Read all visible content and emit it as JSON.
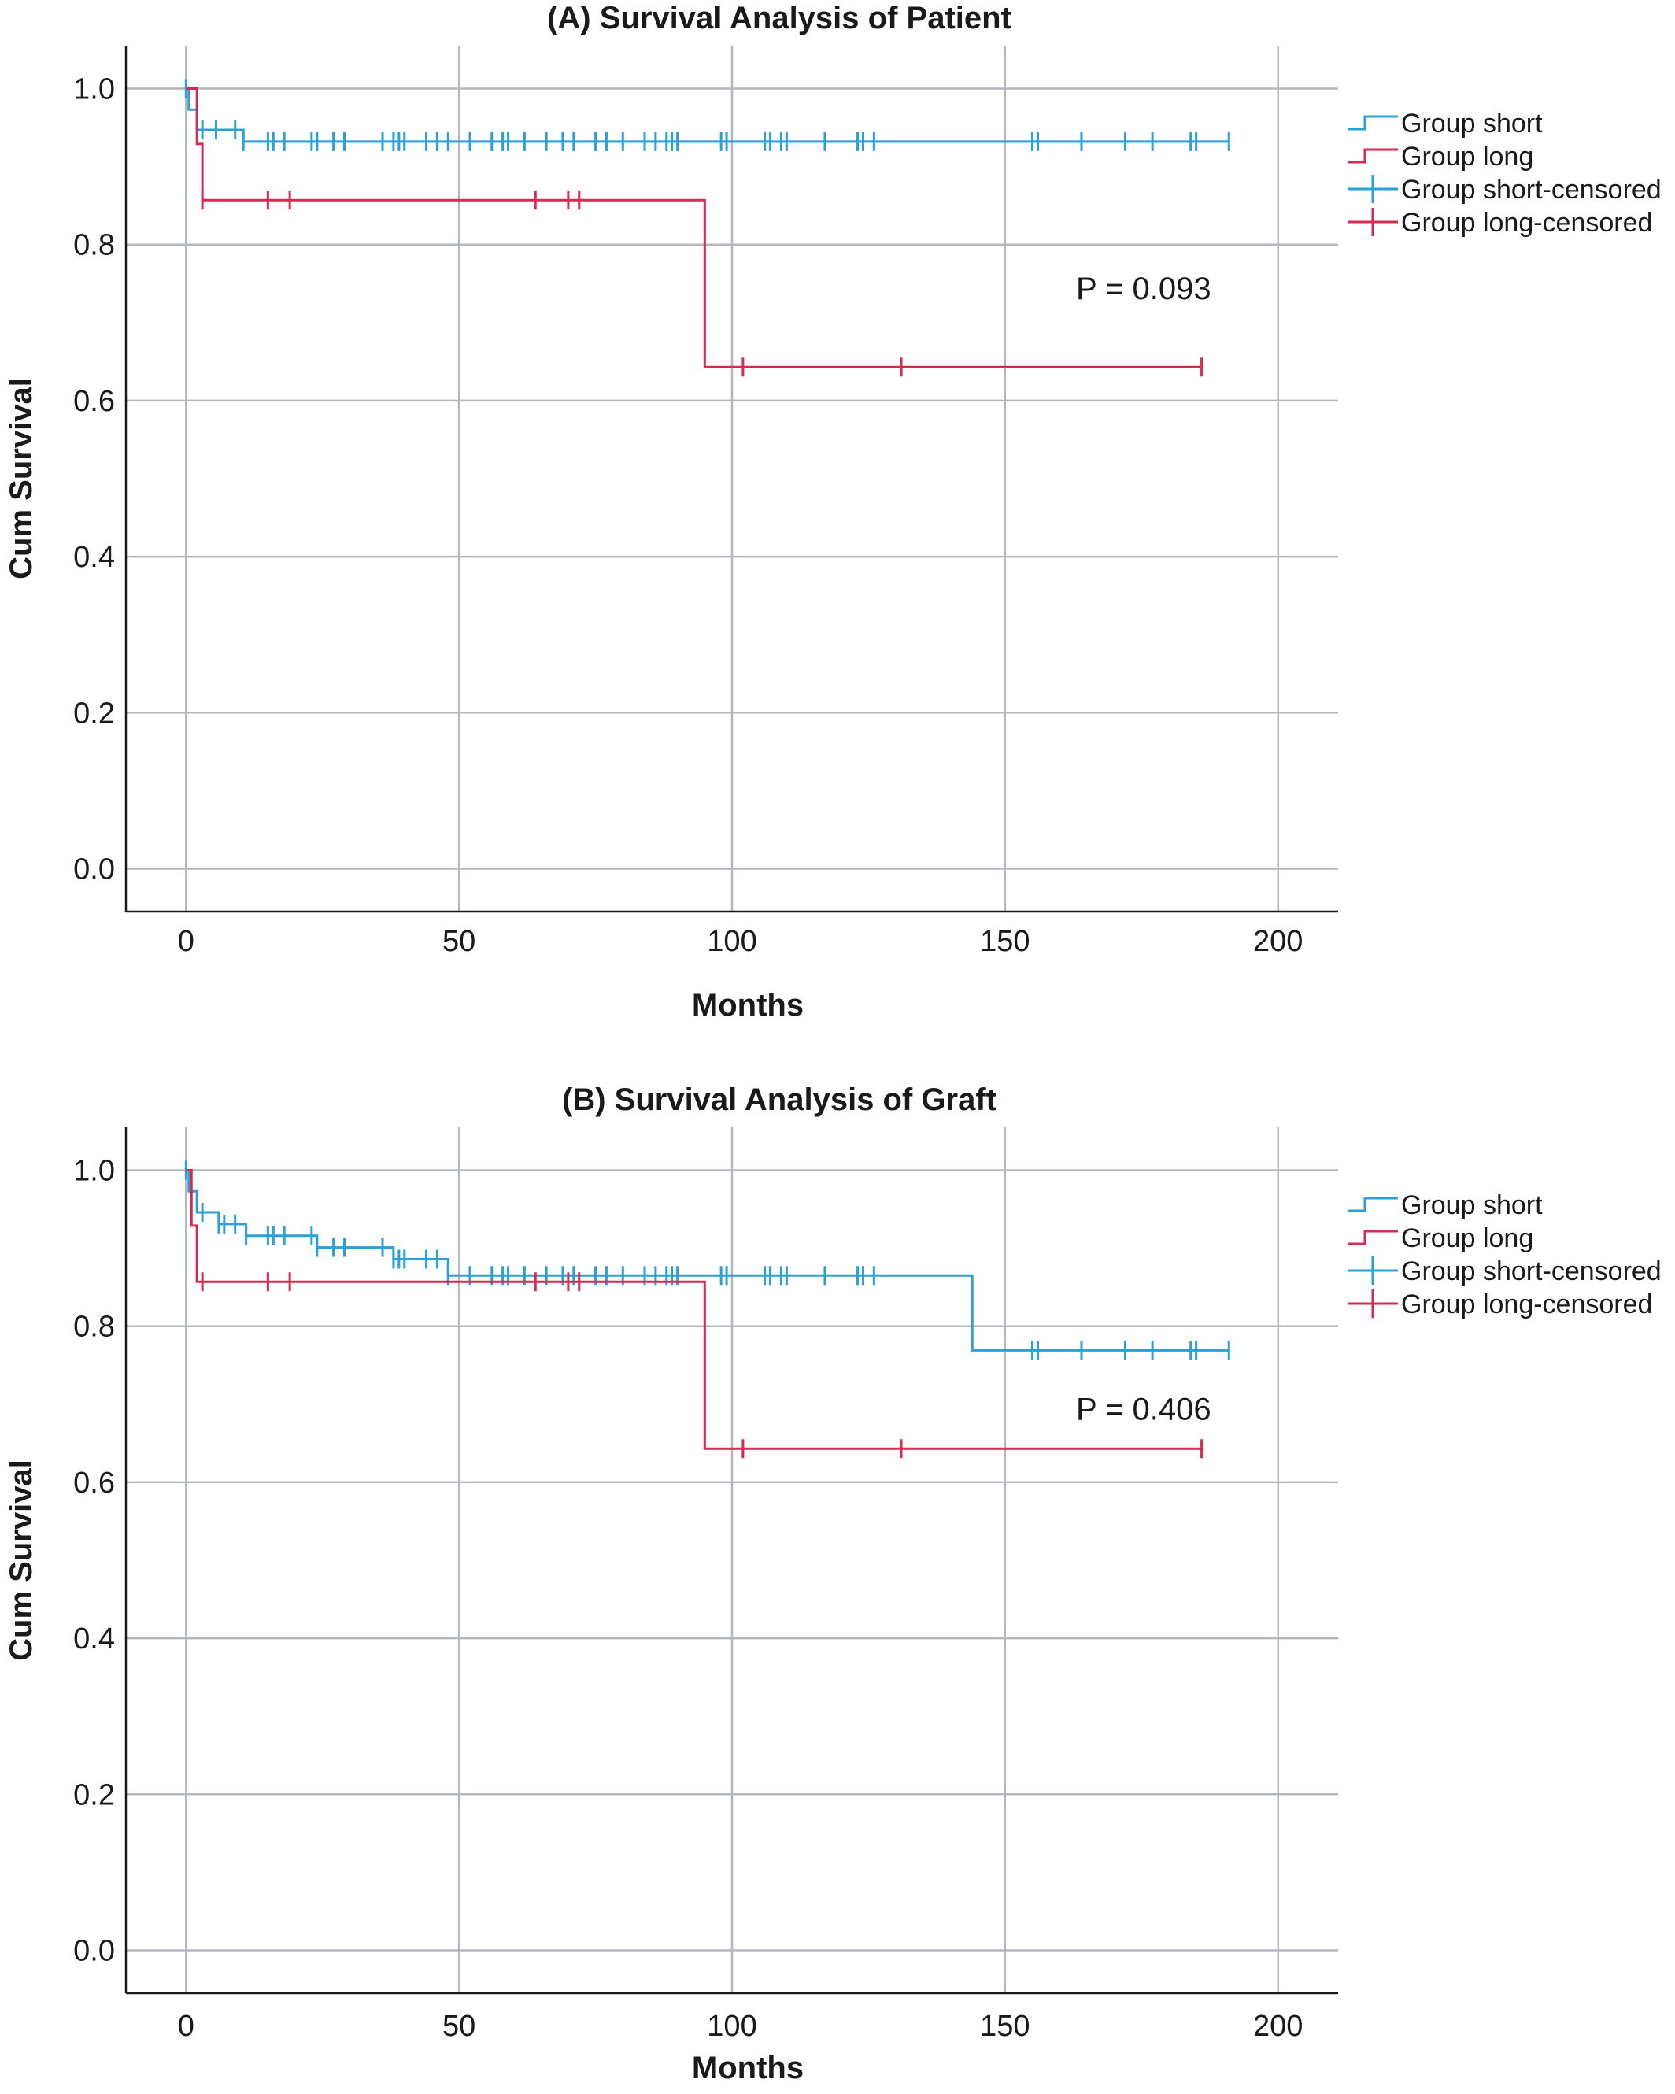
{
  "colors": {
    "short": "#2b9fd6",
    "long": "#d62a52",
    "grid": "#b4b8bd",
    "axis": "#1a1a1a"
  },
  "chart_data": [
    {
      "type": "line",
      "subtype": "kaplan-meier",
      "title": "(A) Survival Analysis of Patient",
      "xlabel": "Months",
      "ylabel": "Cum Survival",
      "xlim": [
        -11,
        211
      ],
      "ylim": [
        -0.055,
        1.055
      ],
      "xticks": [
        "0",
        "50",
        "100",
        "150",
        "200"
      ],
      "yticks": [
        "0.0",
        "0.2",
        "0.4",
        "0.6",
        "0.8",
        "1.0"
      ],
      "grid": true,
      "legend_position": "right",
      "annotation": "P = 0.093",
      "legend": [
        "Group short",
        "Group long",
        "Group short-censored",
        "Group long-censored"
      ],
      "series": [
        {
          "name": "Group short",
          "steps": [
            [
              0,
              1.0
            ],
            [
              0.5,
              0.973
            ],
            [
              2,
              0.947
            ],
            [
              10.5,
              0.932
            ],
            [
              191,
              0.932
            ]
          ],
          "censored": [
            [
              0,
              1.0
            ],
            [
              3,
              0.947
            ],
            [
              5.5,
              0.947
            ],
            [
              9,
              0.947
            ],
            [
              10.5,
              0.932
            ],
            [
              15,
              0.932
            ],
            [
              16,
              0.932
            ],
            [
              18,
              0.932
            ],
            [
              23,
              0.932
            ],
            [
              24,
              0.932
            ],
            [
              27,
              0.932
            ],
            [
              29,
              0.932
            ],
            [
              36,
              0.932
            ],
            [
              38,
              0.932
            ],
            [
              39,
              0.932
            ],
            [
              40,
              0.932
            ],
            [
              44,
              0.932
            ],
            [
              46,
              0.932
            ],
            [
              48,
              0.932
            ],
            [
              52,
              0.932
            ],
            [
              56,
              0.932
            ],
            [
              58,
              0.932
            ],
            [
              59,
              0.932
            ],
            [
              62,
              0.932
            ],
            [
              66,
              0.932
            ],
            [
              69,
              0.932
            ],
            [
              71,
              0.932
            ],
            [
              75,
              0.932
            ],
            [
              77,
              0.932
            ],
            [
              80,
              0.932
            ],
            [
              84,
              0.932
            ],
            [
              86,
              0.932
            ],
            [
              88,
              0.932
            ],
            [
              89,
              0.932
            ],
            [
              90,
              0.932
            ],
            [
              98,
              0.932
            ],
            [
              99,
              0.932
            ],
            [
              106,
              0.932
            ],
            [
              107,
              0.932
            ],
            [
              109,
              0.932
            ],
            [
              110,
              0.932
            ],
            [
              117,
              0.932
            ],
            [
              123,
              0.932
            ],
            [
              124,
              0.932
            ],
            [
              126,
              0.932
            ],
            [
              155,
              0.932
            ],
            [
              156,
              0.932
            ],
            [
              164,
              0.932
            ],
            [
              172,
              0.932
            ],
            [
              177,
              0.932
            ],
            [
              184,
              0.932
            ],
            [
              185,
              0.932
            ],
            [
              191,
              0.932
            ]
          ]
        },
        {
          "name": "Group long",
          "steps": [
            [
              0,
              1.0
            ],
            [
              2,
              0.929
            ],
            [
              3,
              0.857
            ],
            [
              95,
              0.643
            ],
            [
              186,
              0.643
            ]
          ],
          "censored": [
            [
              3,
              0.857
            ],
            [
              15,
              0.857
            ],
            [
              19,
              0.857
            ],
            [
              64,
              0.857
            ],
            [
              70,
              0.857
            ],
            [
              72,
              0.857
            ],
            [
              102,
              0.643
            ],
            [
              131,
              0.643
            ],
            [
              186,
              0.643
            ]
          ]
        }
      ]
    },
    {
      "type": "line",
      "subtype": "kaplan-meier",
      "title": "(B) Survival Analysis of Graft",
      "xlabel": "Months",
      "ylabel": "Cum Survival",
      "xlim": [
        -11,
        211
      ],
      "ylim": [
        -0.055,
        1.055
      ],
      "xticks": [
        "0",
        "50",
        "100",
        "150",
        "200"
      ],
      "yticks": [
        "0.0",
        "0.2",
        "0.4",
        "0.6",
        "0.8",
        "1.0"
      ],
      "grid": true,
      "legend_position": "right",
      "annotation": "P = 0.406",
      "legend": [
        "Group short",
        "Group long",
        "Group short-censored",
        "Group long-censored"
      ],
      "series": [
        {
          "name": "Group short",
          "steps": [
            [
              0,
              1.0
            ],
            [
              0.5,
              0.973
            ],
            [
              2,
              0.946
            ],
            [
              6,
              0.931
            ],
            [
              11,
              0.916
            ],
            [
              24,
              0.901
            ],
            [
              38,
              0.886
            ],
            [
              48,
              0.865
            ],
            [
              144,
              0.769
            ],
            [
              191,
              0.769
            ]
          ],
          "censored": [
            [
              0,
              1.0
            ],
            [
              3,
              0.946
            ],
            [
              6,
              0.931
            ],
            [
              7,
              0.931
            ],
            [
              9,
              0.931
            ],
            [
              11,
              0.916
            ],
            [
              15,
              0.916
            ],
            [
              16,
              0.916
            ],
            [
              18,
              0.916
            ],
            [
              23,
              0.916
            ],
            [
              24,
              0.901
            ],
            [
              27,
              0.901
            ],
            [
              29,
              0.901
            ],
            [
              36,
              0.901
            ],
            [
              38,
              0.886
            ],
            [
              39,
              0.886
            ],
            [
              40,
              0.886
            ],
            [
              44,
              0.886
            ],
            [
              46,
              0.886
            ],
            [
              48,
              0.865
            ],
            [
              52,
              0.865
            ],
            [
              56,
              0.865
            ],
            [
              58,
              0.865
            ],
            [
              59,
              0.865
            ],
            [
              62,
              0.865
            ],
            [
              66,
              0.865
            ],
            [
              69,
              0.865
            ],
            [
              71,
              0.865
            ],
            [
              75,
              0.865
            ],
            [
              77,
              0.865
            ],
            [
              80,
              0.865
            ],
            [
              84,
              0.865
            ],
            [
              86,
              0.865
            ],
            [
              88,
              0.865
            ],
            [
              89,
              0.865
            ],
            [
              90,
              0.865
            ],
            [
              98,
              0.865
            ],
            [
              99,
              0.865
            ],
            [
              106,
              0.865
            ],
            [
              107,
              0.865
            ],
            [
              109,
              0.865
            ],
            [
              110,
              0.865
            ],
            [
              117,
              0.865
            ],
            [
              123,
              0.865
            ],
            [
              124,
              0.865
            ],
            [
              126,
              0.865
            ],
            [
              155,
              0.769
            ],
            [
              156,
              0.769
            ],
            [
              164,
              0.769
            ],
            [
              172,
              0.769
            ],
            [
              177,
              0.769
            ],
            [
              184,
              0.769
            ],
            [
              185,
              0.769
            ],
            [
              191,
              0.769
            ]
          ]
        },
        {
          "name": "Group long",
          "steps": [
            [
              0,
              1.0
            ],
            [
              1,
              0.929
            ],
            [
              2,
              0.857
            ],
            [
              95,
              0.643
            ],
            [
              186,
              0.643
            ]
          ],
          "censored": [
            [
              3,
              0.857
            ],
            [
              15,
              0.857
            ],
            [
              19,
              0.857
            ],
            [
              64,
              0.857
            ],
            [
              70,
              0.857
            ],
            [
              72,
              0.857
            ],
            [
              102,
              0.643
            ],
            [
              131,
              0.643
            ],
            [
              186,
              0.643
            ]
          ]
        }
      ]
    }
  ]
}
